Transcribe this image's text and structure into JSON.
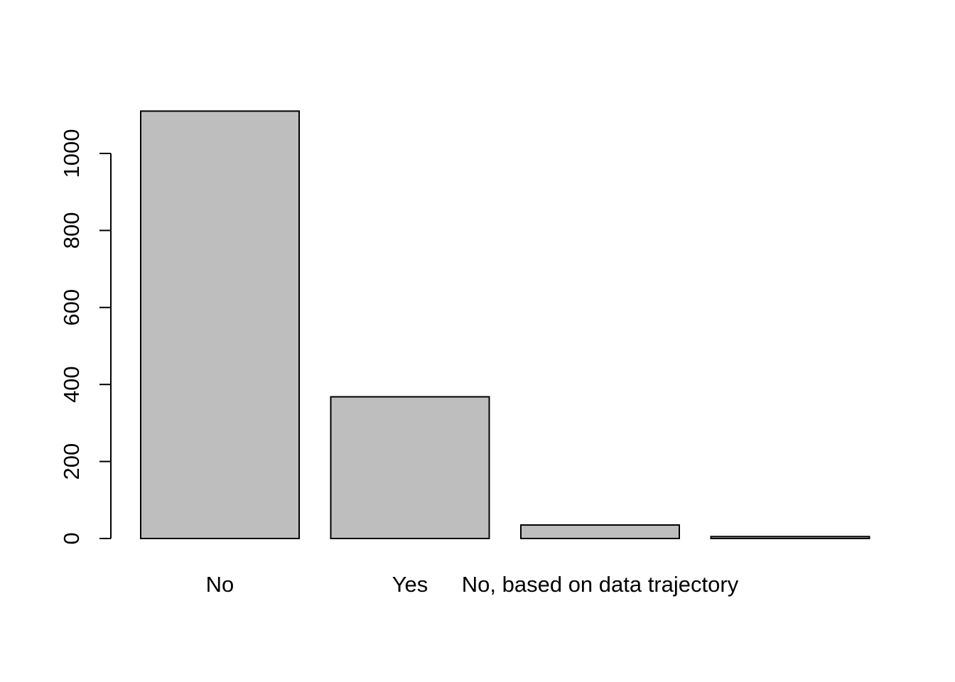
{
  "chart_data": {
    "type": "bar",
    "categories": [
      "No",
      "Yes",
      "No, based on data trajectory",
      ""
    ],
    "values": [
      1110,
      368,
      35,
      5
    ],
    "title": "",
    "xlabel": "",
    "ylabel": "",
    "ylim": [
      0,
      1110
    ],
    "yticks": [
      0,
      200,
      400,
      600,
      800,
      1000
    ],
    "grid": false,
    "legend": "none",
    "colors": {
      "bar_fill": "#bebebe",
      "bar_stroke": "#000000"
    }
  }
}
